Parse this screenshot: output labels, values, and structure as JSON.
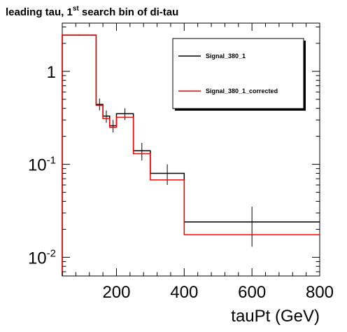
{
  "chart_data": {
    "type": "line",
    "title": "leading tau, 1",
    "title_sup": "st",
    "title_rest": " search bin of di-tau",
    "xlabel": "tauPt (GeV)",
    "ylabel": "",
    "xlim": [
      40,
      800
    ],
    "ylim": [
      0.0063,
      3.3
    ],
    "yscale": "log",
    "grid": false,
    "legend_position": "top-right",
    "x_ticks": [
      {
        "value": 200,
        "label": "200"
      },
      {
        "value": 400,
        "label": "400"
      },
      {
        "value": 600,
        "label": "600"
      },
      {
        "value": 800,
        "label": "800"
      }
    ],
    "y_ticks": [
      {
        "value": 1,
        "base": "1",
        "exp": ""
      },
      {
        "value": 0.1,
        "base": "10",
        "exp": "-1"
      },
      {
        "value": 0.01,
        "base": "10",
        "exp": "-2"
      }
    ],
    "bin_edges": [
      40,
      140,
      160,
      180,
      200,
      250,
      300,
      400,
      800
    ],
    "series": [
      {
        "name": "Signal_380_1",
        "color": "#000000",
        "values": [
          2.45,
          0.44,
          0.33,
          0.26,
          0.35,
          0.14,
          0.08,
          0.024
        ],
        "error_low": [
          0.04,
          0.06,
          0.05,
          0.04,
          0.05,
          0.03,
          0.02,
          0.011
        ],
        "error_high": [
          0.04,
          0.07,
          0.05,
          0.04,
          0.05,
          0.03,
          0.02,
          0.011
        ]
      },
      {
        "name": "Signal_380_1_corrected",
        "color": "#ff0000",
        "values": [
          2.45,
          0.43,
          0.31,
          0.25,
          0.32,
          0.13,
          0.068,
          0.0175
        ]
      }
    ]
  }
}
